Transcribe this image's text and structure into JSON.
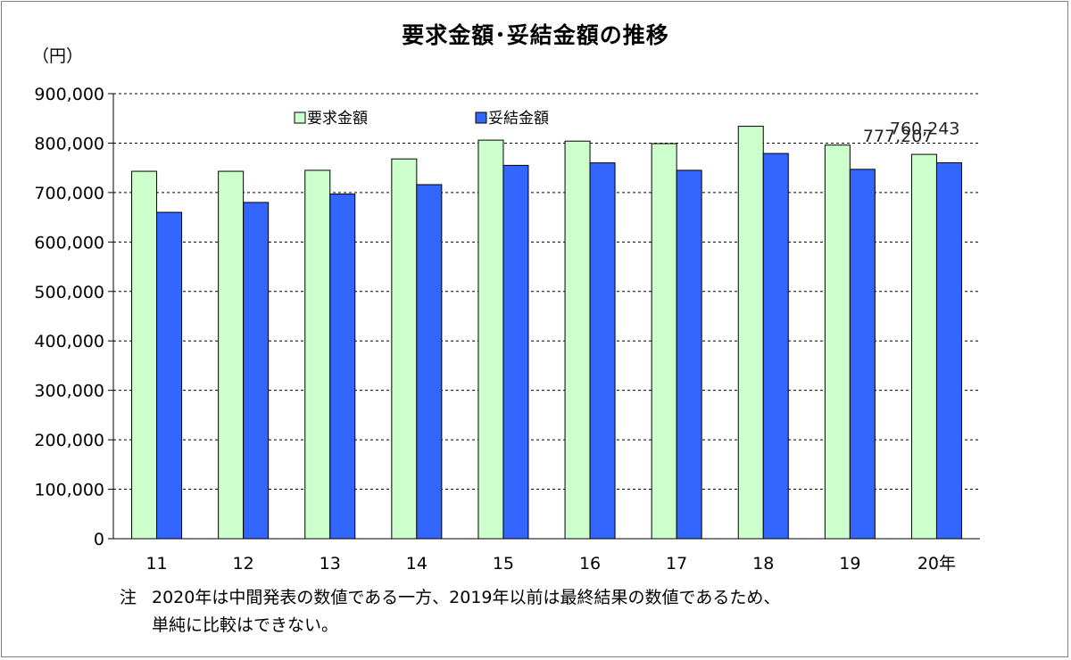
{
  "title": "要求金額･妥結金額の推移",
  "unit_label": "（円）",
  "note": {
    "mark": "注",
    "line1": "2020年は中間発表の数値である一方、2019年以前は最終結果の数値であるため、",
    "line2": "単純に比較はできない。"
  },
  "colors": {
    "demand": "#ccffcc",
    "settled": "#3366ff",
    "outline": "#000000",
    "grid": "#000000"
  },
  "chart_data": {
    "type": "bar",
    "title": "要求金額･妥結金額の推移",
    "ylabel": "（円）",
    "xlabel": "",
    "categories": [
      "11",
      "12",
      "13",
      "14",
      "15",
      "16",
      "17",
      "18",
      "19",
      "20年"
    ],
    "series": [
      {
        "name": "要求金額",
        "values": [
          743000,
          743000,
          745000,
          768000,
          806000,
          804000,
          799000,
          834000,
          796000,
          777207
        ]
      },
      {
        "name": "妥結金額",
        "values": [
          660000,
          680000,
          697000,
          716000,
          755000,
          760000,
          745000,
          779000,
          747000,
          760243
        ]
      }
    ],
    "ylim": [
      0,
      900000
    ],
    "yticks": [
      0,
      100000,
      200000,
      300000,
      400000,
      500000,
      600000,
      700000,
      800000,
      900000
    ],
    "ytick_labels": [
      "0",
      "100,000",
      "200,000",
      "300,000",
      "400,000",
      "500,000",
      "600,000",
      "700,000",
      "800,000",
      "900,000"
    ],
    "grid": "dashed horizontal",
    "legend_position": "top-left",
    "data_labels": [
      {
        "category": "20年",
        "series": "要求金額",
        "text": "777,207"
      },
      {
        "category": "20年",
        "series": "妥結金額",
        "text": "760,243"
      }
    ]
  }
}
